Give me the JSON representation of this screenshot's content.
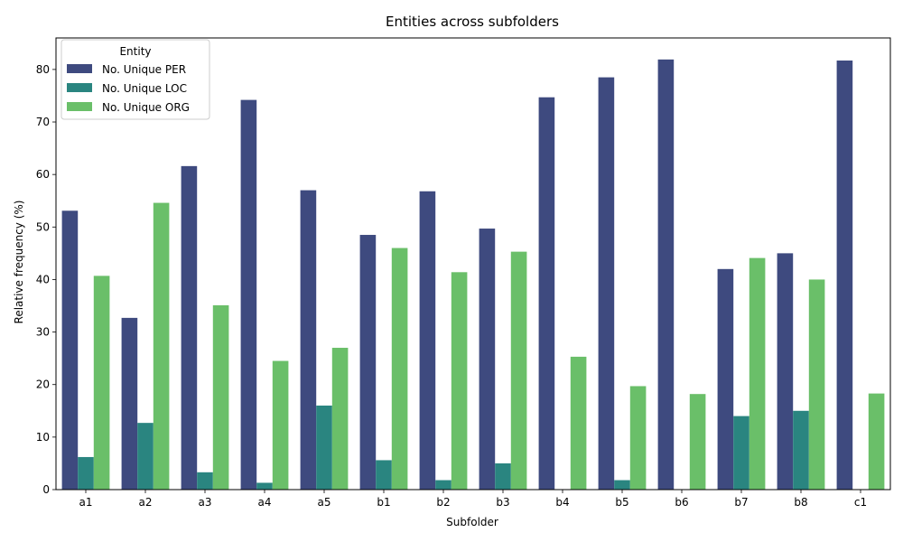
{
  "chart_data": {
    "type": "bar",
    "title": "Entities across subfolders",
    "xlabel": "Subfolder",
    "ylabel": "Relative frequency (%)",
    "categories": [
      "a1",
      "a2",
      "a3",
      "a4",
      "a5",
      "b1",
      "b2",
      "b3",
      "b4",
      "b5",
      "b6",
      "b7",
      "b8",
      "c1"
    ],
    "series": [
      {
        "name": "No. Unique PER",
        "color": "#3e4a7f",
        "values": [
          53.1,
          32.7,
          61.6,
          74.2,
          57.0,
          48.5,
          56.8,
          49.7,
          74.7,
          78.5,
          81.9,
          42.0,
          45.0,
          81.7
        ]
      },
      {
        "name": "No. Unique LOC",
        "color": "#2a8580",
        "values": [
          6.2,
          12.7,
          3.3,
          1.3,
          16.0,
          5.6,
          1.8,
          5.0,
          0,
          1.8,
          0,
          14.0,
          15.0,
          0
        ]
      },
      {
        "name": "No. Unique ORG",
        "color": "#6abf69",
        "values": [
          40.7,
          54.6,
          35.1,
          24.5,
          27.0,
          46.0,
          41.4,
          45.3,
          25.3,
          19.7,
          18.2,
          44.1,
          40.0,
          18.3
        ]
      }
    ],
    "yticks": [
      0,
      10,
      20,
      30,
      40,
      50,
      60,
      70,
      80
    ],
    "ylim": [
      0,
      86
    ],
    "grid": false,
    "legend": {
      "title": "Entity",
      "placement": "top-left"
    }
  }
}
